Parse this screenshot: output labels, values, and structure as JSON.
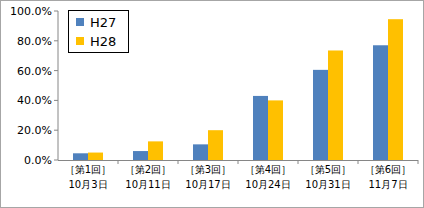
{
  "chart_data": {
    "type": "bar",
    "categories": [
      "［第1回］\n10月3日",
      "［第2回］\n10月11日",
      "［第3回］\n10月17日",
      "［第4回］\n10月24日",
      "［第5回］\n10月31日",
      "［第6回］\n11月7日"
    ],
    "series": [
      {
        "name": "H27",
        "color": "#4f81bd",
        "values": [
          4.5,
          6,
          10.5,
          43,
          60.5,
          77
        ]
      },
      {
        "name": "H28",
        "color": "#ffc000",
        "values": [
          5,
          12.5,
          20,
          40,
          73.5,
          94.5
        ]
      }
    ],
    "ylim": [
      0,
      100
    ],
    "yticks": [
      {
        "value": 0,
        "label": "0.0%"
      },
      {
        "value": 20,
        "label": "20.0%"
      },
      {
        "value": 40,
        "label": "40.0%"
      },
      {
        "value": 60,
        "label": "60.0%"
      },
      {
        "value": 80,
        "label": "80.0%"
      },
      {
        "value": 100,
        "label": "100.0%"
      }
    ],
    "grid": false,
    "legend": "top-left"
  }
}
